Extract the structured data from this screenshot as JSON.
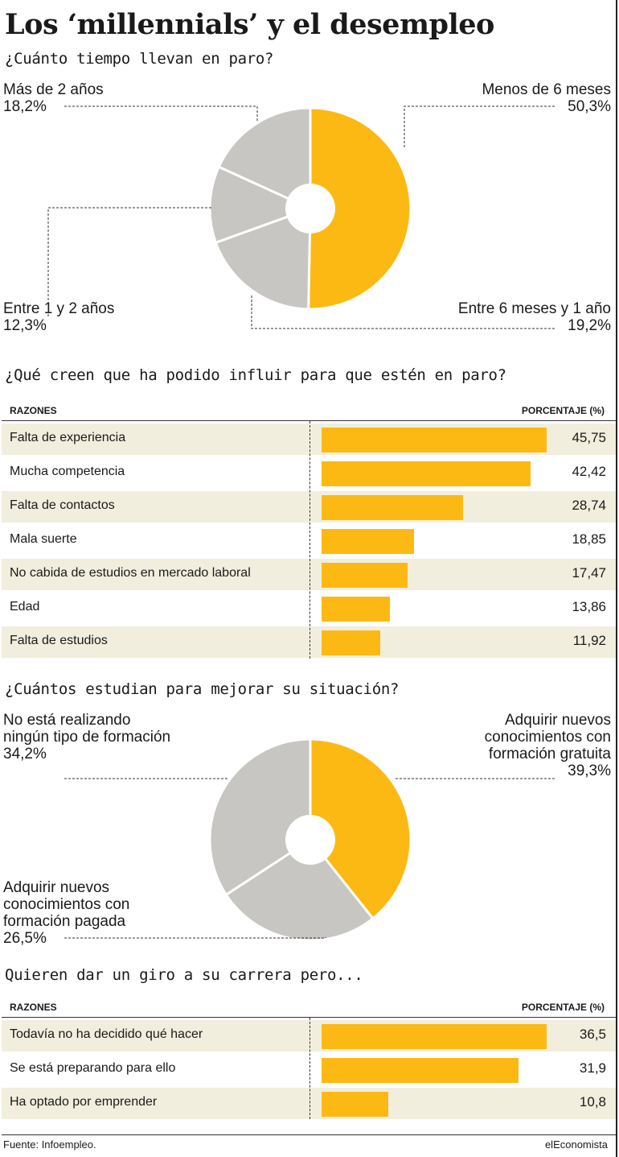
{
  "title": "Los ‘millennials’ y el desempleo",
  "colors": {
    "accent": "#fdb913",
    "gray": "#c8c6c2",
    "shade": "#f1eedd"
  },
  "pie1": {
    "subtitle": "¿Cuánto tiempo llevan en paro?",
    "slices": [
      {
        "label": "Menos de 6 meses",
        "value_label": "50,3%"
      },
      {
        "label": "Entre 6 meses y 1 año",
        "value_label": "19,2%"
      },
      {
        "label": "Entre 1 y 2 años",
        "value_label": "12,3%"
      },
      {
        "label": "Más de 2 años",
        "value_label": "18,2%"
      }
    ]
  },
  "table1": {
    "subtitle": "¿Qué creen que ha podido influir para que estén en paro?",
    "col_left": "RAZONES",
    "col_right": "PORCENTAJE (%)",
    "rows": [
      {
        "label": "Falta de experiencia",
        "value": "45,75"
      },
      {
        "label": "Mucha competencia",
        "value": "42,42"
      },
      {
        "label": "Falta de contactos",
        "value": "28,74"
      },
      {
        "label": "Mala suerte",
        "value": "18,85"
      },
      {
        "label": "No cabida de estudios en mercado laboral",
        "value": "17,47"
      },
      {
        "label": "Edad",
        "value": "13,86"
      },
      {
        "label": "Falta de estudios",
        "value": "11,92"
      }
    ]
  },
  "pie2": {
    "subtitle": "¿Cuántos estudian para mejorar su situación?",
    "slices": [
      {
        "label": "Adquirir nuevos conocimientos con formación gratuita",
        "value_label": "39,3%"
      },
      {
        "label": "Adquirir nuevos conocimientos con formación pagada",
        "value_label": "26,5%"
      },
      {
        "label": "No está realizando ningún tipo de formación",
        "value_label": "34,2%"
      }
    ]
  },
  "table2": {
    "subtitle": "Quieren dar un giro a su carrera pero...",
    "col_left": "RAZONES",
    "col_right": "PORCENTAJE (%)",
    "rows": [
      {
        "label": "Todavía no ha decidido qué hacer",
        "value": "36,5"
      },
      {
        "label": "Se está preparando para ello",
        "value": "31,9"
      },
      {
        "label": "Ha optado por  emprender",
        "value": "10,8"
      }
    ]
  },
  "footer": {
    "source": "Fuente: Infoempleo.",
    "brand": "elEconomista"
  },
  "chart_data": [
    {
      "type": "pie",
      "title": "¿Cuánto tiempo llevan en paro?",
      "labels": [
        "Menos de 6 meses",
        "Entre 6 meses y 1 año",
        "Entre 1 y 2 años",
        "Más de 2 años"
      ],
      "values": [
        50.3,
        19.2,
        12.3,
        18.2
      ],
      "colors": [
        "#fdb913",
        "#c8c6c2",
        "#c8c6c2",
        "#c8c6c2"
      ]
    },
    {
      "type": "bar",
      "orientation": "horizontal",
      "title": "¿Qué creen que ha podido influir para que estén en paro?",
      "categories": [
        "Falta de experiencia",
        "Mucha competencia",
        "Falta de contactos",
        "Mala suerte",
        "No cabida de estudios en mercado laboral",
        "Edad",
        "Falta de estudios"
      ],
      "values": [
        45.75,
        42.42,
        28.74,
        18.85,
        17.47,
        13.86,
        11.92
      ],
      "xlabel": "PORCENTAJE (%)",
      "ylabel": "RAZONES"
    },
    {
      "type": "pie",
      "title": "¿Cuántos estudian para mejorar su situación?",
      "labels": [
        "Adquirir nuevos conocimientos con formación gratuita",
        "Adquirir nuevos conocimientos con formación pagada",
        "No está realizando ningún tipo de formación"
      ],
      "values": [
        39.3,
        26.5,
        34.2
      ],
      "colors": [
        "#fdb913",
        "#c8c6c2",
        "#c8c6c2"
      ]
    },
    {
      "type": "bar",
      "orientation": "horizontal",
      "title": "Quieren dar un giro a su carrera pero...",
      "categories": [
        "Todavía no ha decidido qué hacer",
        "Se está preparando para ello",
        "Ha optado por  emprender"
      ],
      "values": [
        36.5,
        31.9,
        10.8
      ],
      "xlabel": "PORCENTAJE (%)",
      "ylabel": "RAZONES"
    }
  ]
}
